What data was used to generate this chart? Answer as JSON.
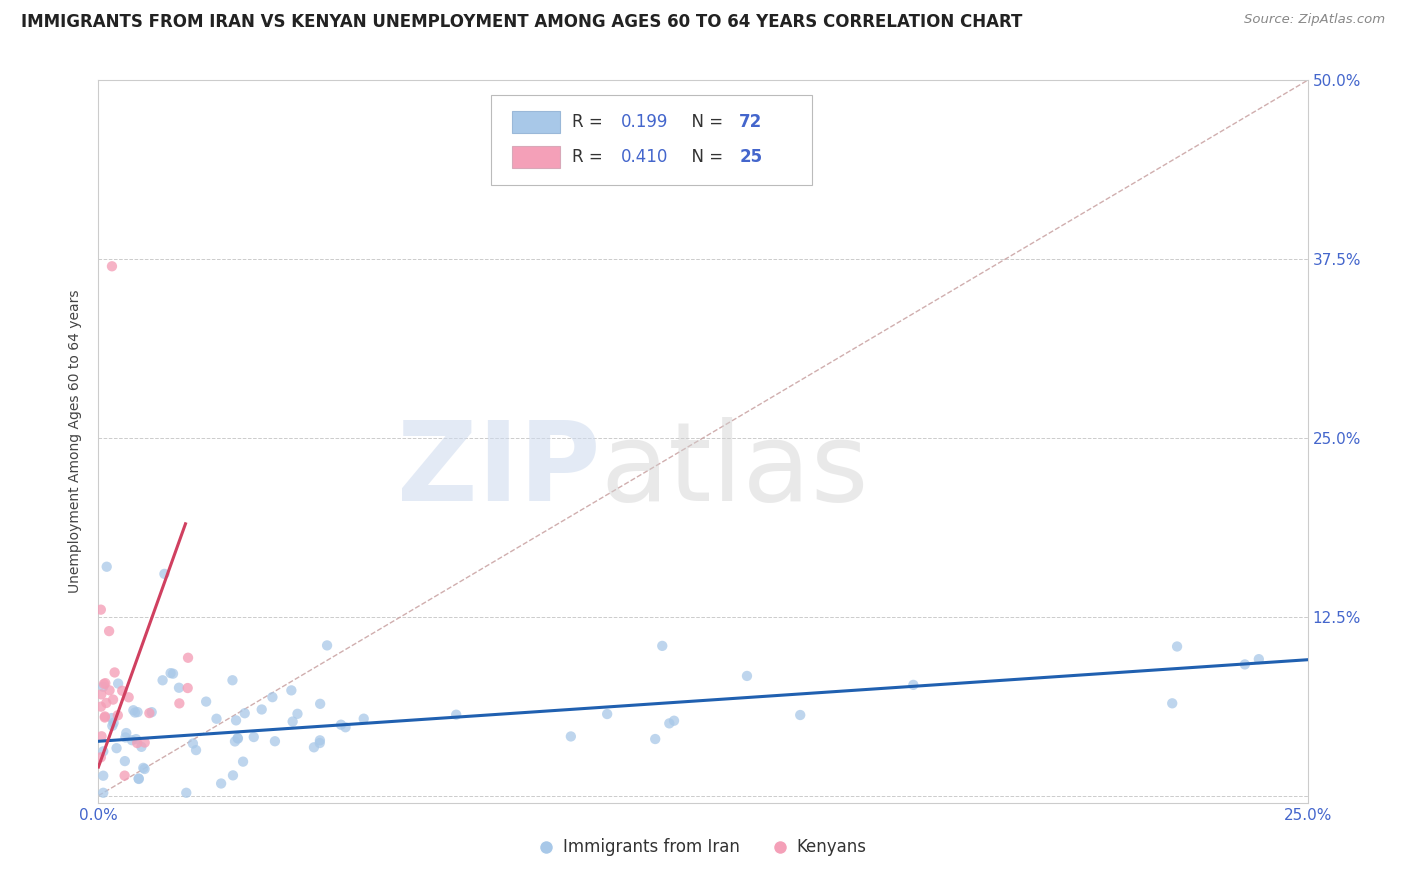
{
  "title": "IMMIGRANTS FROM IRAN VS KENYAN UNEMPLOYMENT AMONG AGES 60 TO 64 YEARS CORRELATION CHART",
  "source": "Source: ZipAtlas.com",
  "ylabel": "Unemployment Among Ages 60 to 64 years",
  "xlim": [
    0.0,
    0.25
  ],
  "ylim": [
    -0.005,
    0.5
  ],
  "legend_label1": "Immigrants from Iran",
  "legend_label2": "Kenyans",
  "r1": "0.199",
  "n1": "72",
  "r2": "0.410",
  "n2": "25",
  "blue_scatter_color": "#a8c8e8",
  "pink_scatter_color": "#f4a0b8",
  "blue_line_color": "#2060b0",
  "pink_line_color": "#d04060",
  "ref_line_color": "#c8a0a0",
  "tick_color": "#4466cc",
  "title_fontsize": 12,
  "axis_label_fontsize": 10,
  "tick_fontsize": 11,
  "background_color": "#ffffff",
  "grid_color": "#cccccc",
  "blue_trend_x0": 0.0,
  "blue_trend_x1": 0.25,
  "blue_trend_y0": 0.038,
  "blue_trend_y1": 0.095,
  "pink_trend_x0": 0.0,
  "pink_trend_x1": 0.018,
  "pink_trend_y0": 0.02,
  "pink_trend_y1": 0.19
}
